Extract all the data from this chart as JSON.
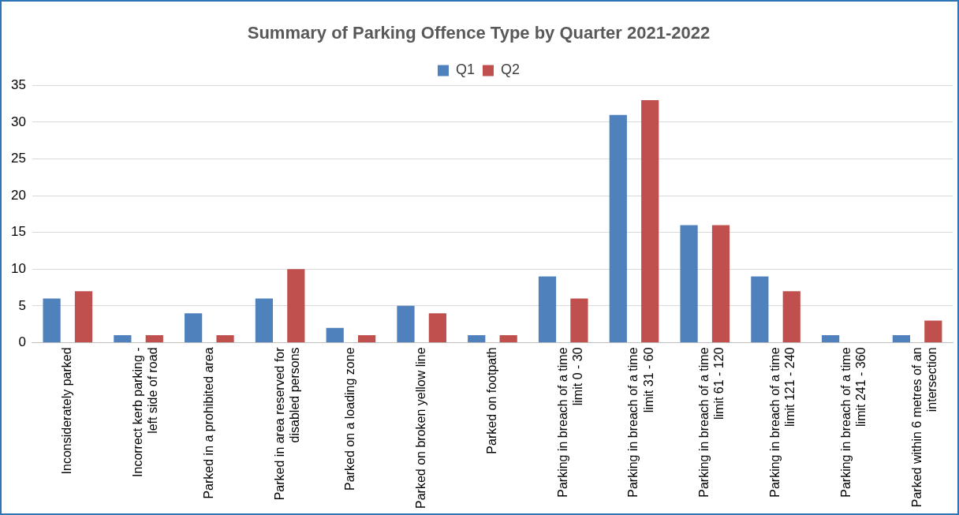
{
  "chart_data": {
    "type": "bar",
    "title": "Summary of Parking Offence Type by Quarter 2021-2022",
    "categories": [
      "Inconsiderately parked",
      "Incorrect kerb parking - left side of road",
      "Parked in a prohibited area",
      "Parked in area reserved for disabled persons",
      "Parked on a loading zone",
      "Parked on broken yellow line",
      "Parked on footpath",
      "Parking in breach of a time limit 0 - 30",
      "Parking in breach of a time limit 31 - 60",
      "Parking in breach of a time limit 61 - 120",
      "Parking in breach of a time limit 121 - 240",
      "Parking in breach of a time limit 241 - 360",
      "Parked within 6 metres of an intersection"
    ],
    "series": [
      {
        "name": "Q1",
        "color": "#4f81bd",
        "values": [
          6,
          1,
          4,
          6,
          2,
          5,
          1,
          9,
          31,
          16,
          9,
          1,
          1
        ]
      },
      {
        "name": "Q2",
        "color": "#c0504d",
        "values": [
          7,
          1,
          1,
          10,
          1,
          4,
          1,
          6,
          33,
          16,
          7,
          0,
          3
        ]
      }
    ],
    "ylim": [
      0,
      35
    ],
    "yticks": [
      0,
      5,
      10,
      15,
      20,
      25,
      30,
      35
    ],
    "grid": "y",
    "legend": "top"
  }
}
